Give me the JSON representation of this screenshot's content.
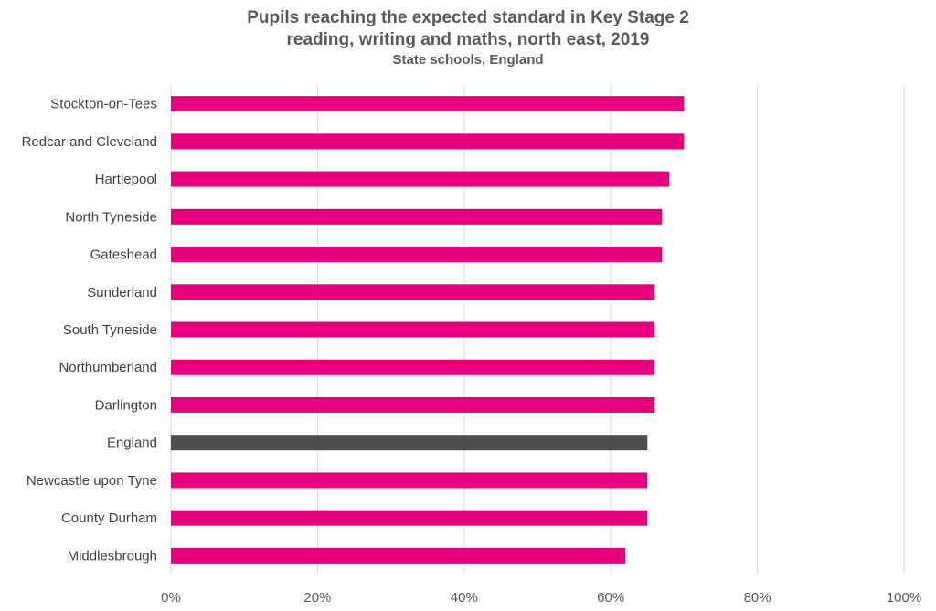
{
  "chart_data": {
    "type": "bar",
    "orientation": "horizontal",
    "title_lines": [
      "Pupils reaching the expected standard in Key Stage 2",
      "reading, writing and maths, north east, 2019"
    ],
    "subtitle": "State schools, England",
    "categories": [
      "Stockton-on-Tees",
      "Redcar and Cleveland",
      "Hartlepool",
      "North Tyneside",
      "Gateshead",
      "Sunderland",
      "South Tyneside",
      "Northumberland",
      "Darlington",
      "England",
      "Newcastle upon Tyne",
      "County Durham",
      "Middlesbrough"
    ],
    "values": [
      70,
      70,
      68,
      67,
      67,
      66,
      66,
      66,
      66,
      65,
      65,
      65,
      62
    ],
    "highlight_category": "England",
    "colors": {
      "bar": "#E6007E",
      "highlight": "#4D4D4D",
      "grid": "#D9D9D9",
      "text": "#595959"
    },
    "xlim": [
      0,
      100
    ],
    "xticks": [
      "0%",
      "20%",
      "40%",
      "60%",
      "80%",
      "100%"
    ],
    "grid": true,
    "legend": "none"
  }
}
